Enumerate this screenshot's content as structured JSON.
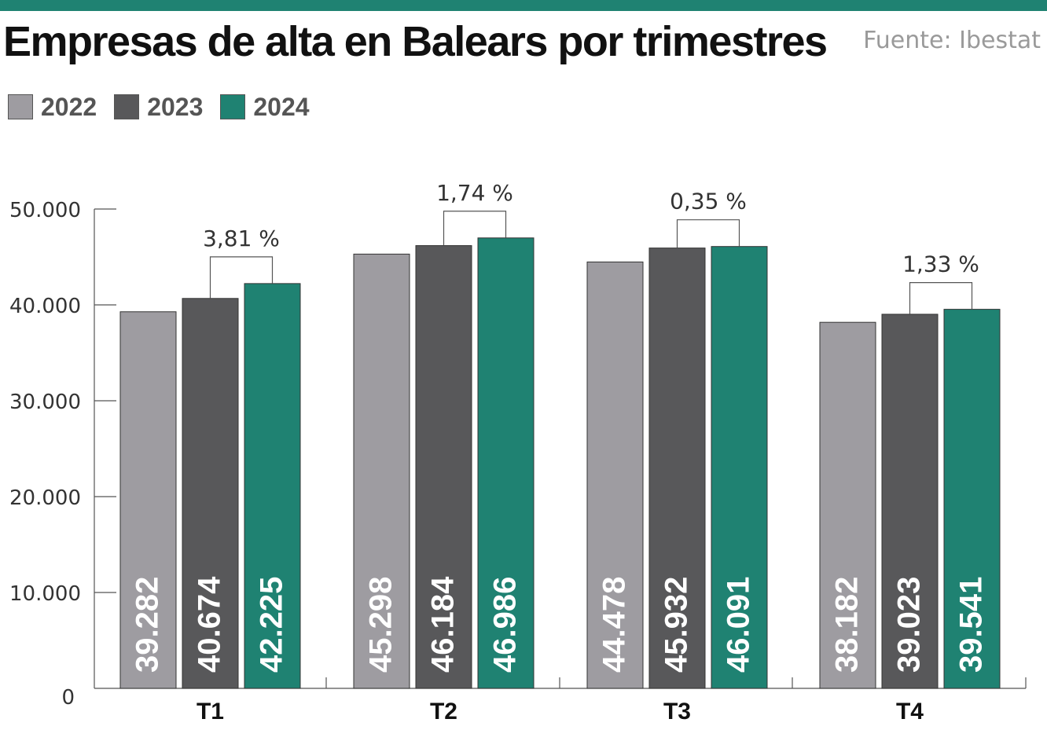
{
  "title": "Empresas de alta en Balears por trimestres",
  "source": "Fuente: Ibestat",
  "colors": {
    "accent": "#1f8272",
    "s2022": "#9e9ca1",
    "s2023": "#58585a",
    "s2024": "#1f8272"
  },
  "chart_data": {
    "type": "bar",
    "categories": [
      "T1",
      "T2",
      "T3",
      "T4"
    ],
    "series": [
      {
        "name": "2022",
        "values": [
          39282,
          45298,
          44478,
          38182
        ],
        "labels": [
          "39.282",
          "45.298",
          "44.478",
          "38.182"
        ]
      },
      {
        "name": "2023",
        "values": [
          40674,
          46184,
          45932,
          39023
        ],
        "labels": [
          "40.674",
          "46.184",
          "45.932",
          "39.023"
        ]
      },
      {
        "name": "2024",
        "values": [
          42225,
          46986,
          46091,
          39541
        ],
        "labels": [
          "42.225",
          "46.986",
          "46.091",
          "39.541"
        ]
      }
    ],
    "annotations": [
      "3,81 %",
      "1,74 %",
      "0,35 %",
      "1,33 %"
    ],
    "yticks": [
      0,
      10000,
      20000,
      30000,
      40000,
      50000
    ],
    "ytick_labels": [
      "0",
      "10.000",
      "20.000",
      "30.000",
      "40.000",
      "50.000"
    ],
    "ylim": [
      0,
      50000
    ],
    "legend": "top-left",
    "grid": false
  }
}
